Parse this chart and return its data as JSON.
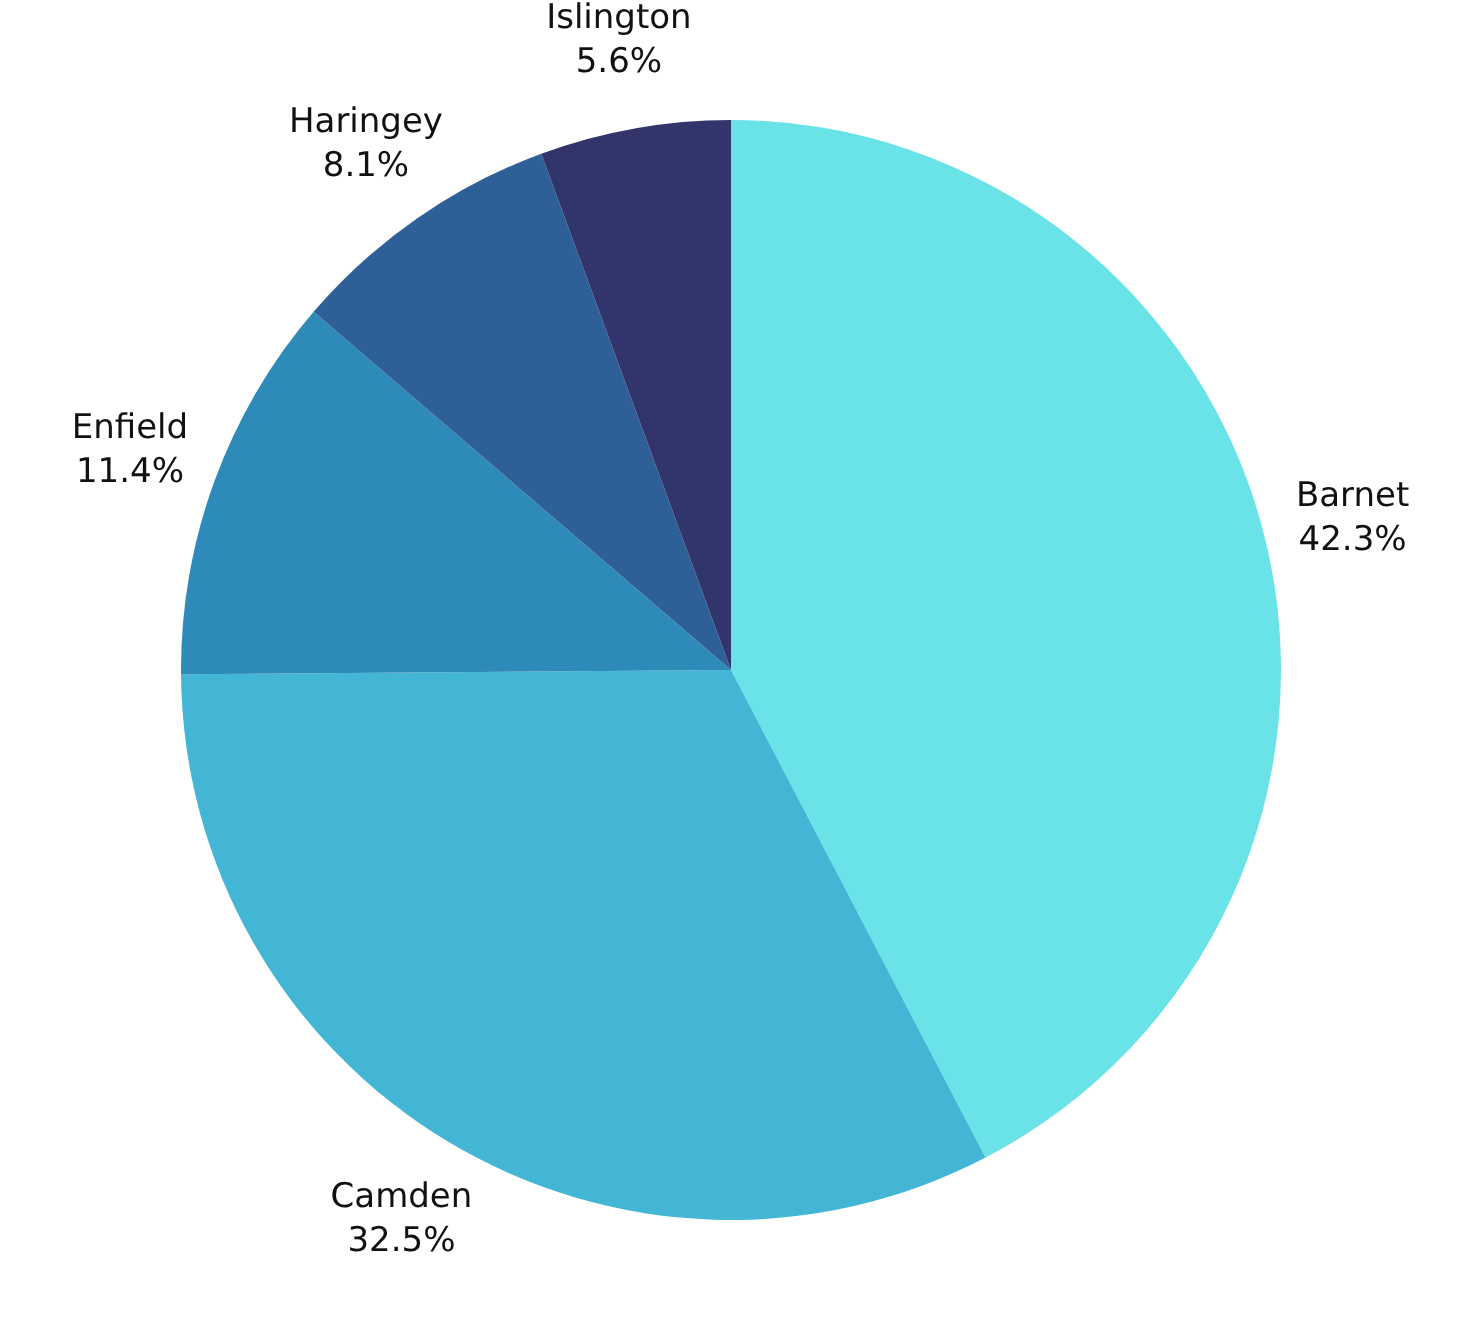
{
  "chart_data": {
    "type": "pie",
    "categories": [
      "Barnet",
      "Camden",
      "Enfield",
      "Haringey",
      "Islington"
    ],
    "values": [
      42.3,
      32.5,
      11.4,
      8.1,
      5.6
    ],
    "value_labels": [
      "42.3%",
      "32.5%",
      "11.4%",
      "8.1%",
      "5.6%"
    ],
    "colors": [
      "#6ae3e8",
      "#42b6d4",
      "#2e8ab8",
      "#2e5f97",
      "#31356b"
    ]
  }
}
